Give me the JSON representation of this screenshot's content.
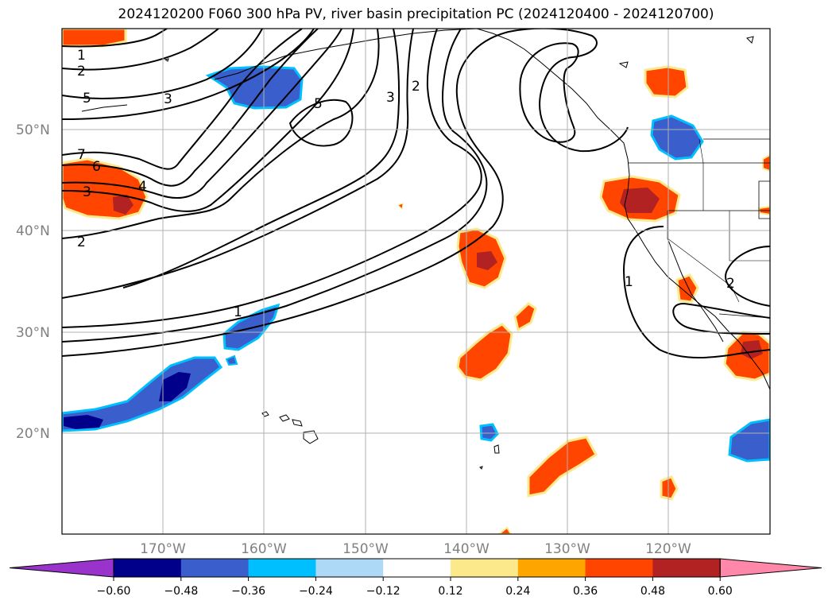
{
  "title": "2024120200 F060 300 hPa PV, river basin precipitation PC (2024120400 - 2024120700)",
  "latitude_labels": [
    "50°N",
    "40°N",
    "30°N",
    "20°N"
  ],
  "longitude_labels": [
    "170°W",
    "160°W",
    "150°W",
    "140°W",
    "130°W",
    "120°W"
  ],
  "contour_labels": [
    "1",
    "2",
    "5",
    "3",
    "5",
    "3",
    "2",
    "7",
    "6",
    "3",
    "4",
    "2",
    "1",
    "1",
    "2"
  ],
  "colorbar": {
    "tick_labels": [
      "−0.60",
      "−0.48",
      "−0.36",
      "−0.24",
      "−0.12",
      "0.12",
      "0.24",
      "0.36",
      "0.48",
      "0.60"
    ],
    "colors": [
      "#9933cc",
      "#00008b",
      "#3a5fcd",
      "#00bfff",
      "#add8f6",
      "#ffffff",
      "#fbe98b",
      "#ffa500",
      "#ff4500",
      "#b22222",
      "#ff88aa"
    ]
  },
  "colors": {
    "pv_contour": "#000000",
    "coastline": "#000000",
    "gridline": "#b0b0b0"
  }
}
